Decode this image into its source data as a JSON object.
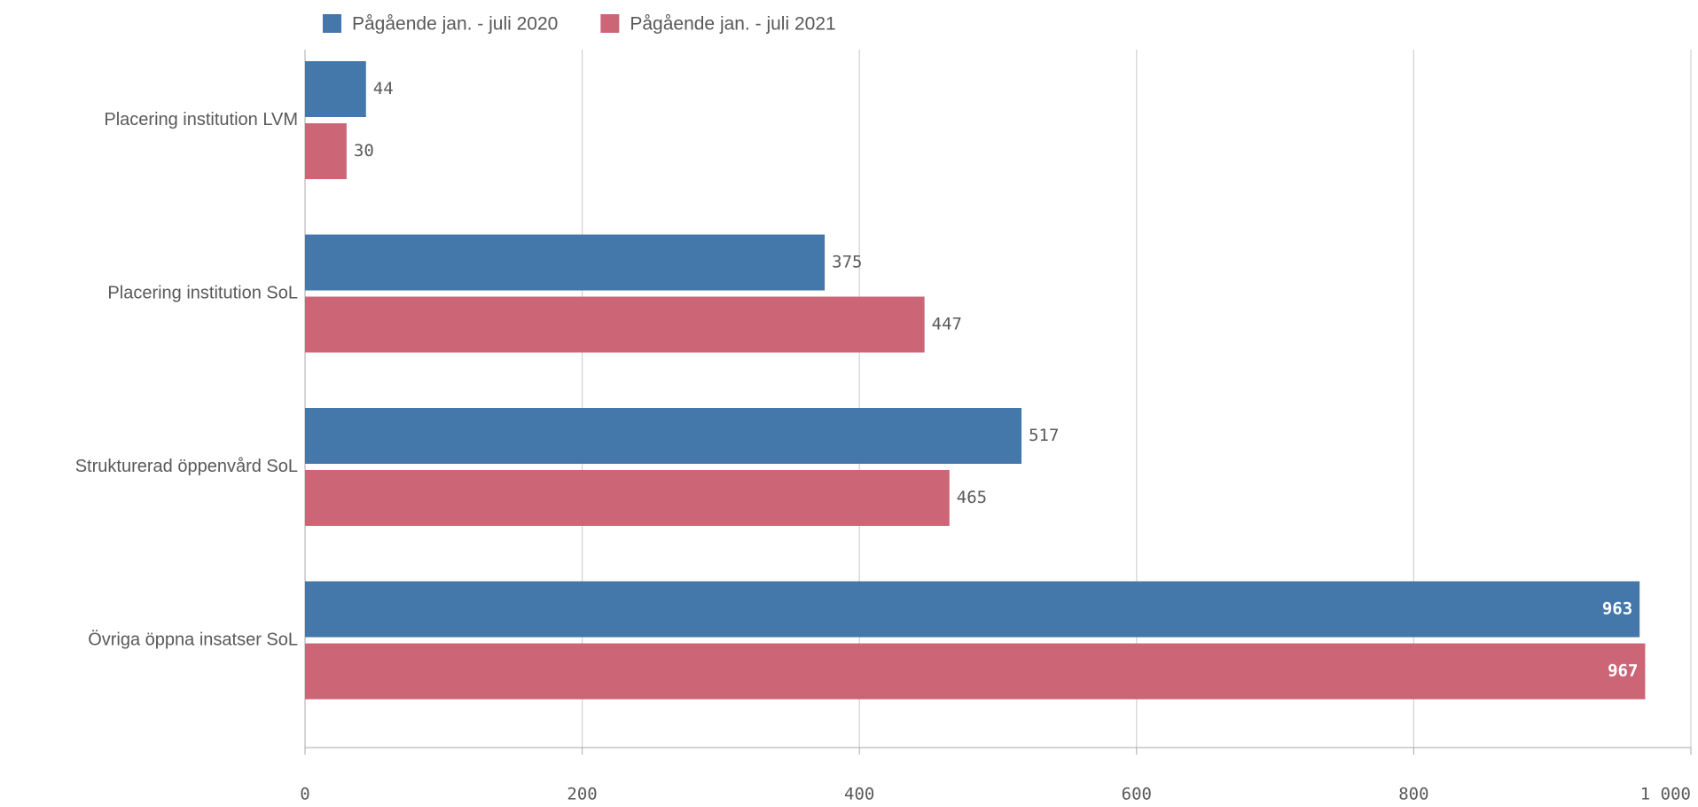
{
  "chart_data": {
    "type": "hbar",
    "categories": [
      "Placering institution LVM",
      "Placering institution SoL",
      "Strukturerad öppenvård SoL",
      "Övriga öppna insatser SoL"
    ],
    "series": [
      {
        "name": "Pågående jan. - juli 2020",
        "color": "#4477aa",
        "values": [
          44,
          375,
          517,
          963
        ]
      },
      {
        "name": "Pågående jan. - juli 2021",
        "color": "#cc6677",
        "values": [
          30,
          447,
          465,
          967
        ]
      }
    ],
    "xlim": [
      0,
      1000
    ],
    "xticks": [
      0,
      200,
      400,
      600,
      800,
      {
        "value": 1000,
        "label": "1 000"
      }
    ],
    "grid": true,
    "legend": "top"
  }
}
